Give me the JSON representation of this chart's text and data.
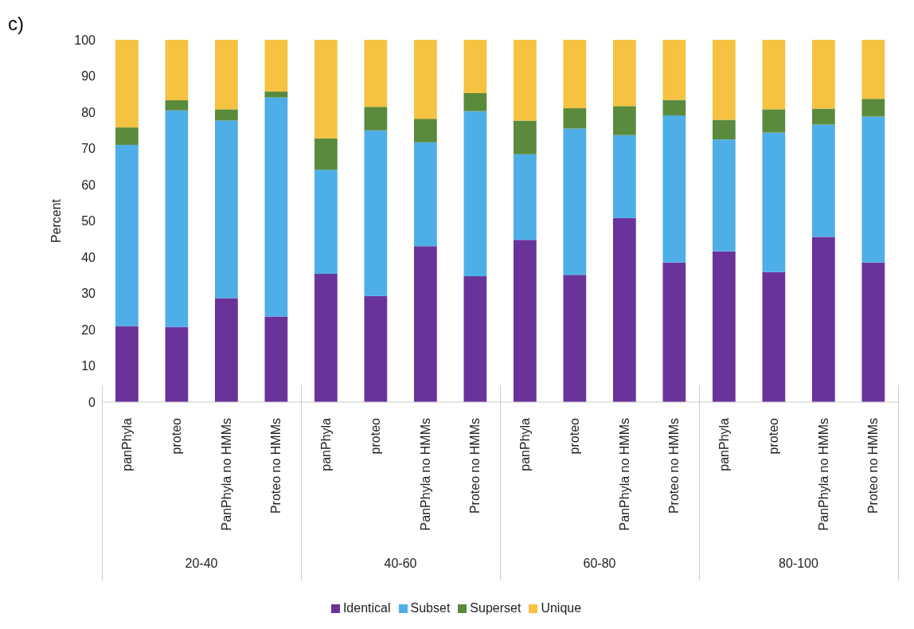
{
  "chart_data": {
    "type": "bar",
    "stacked": true,
    "ylabel": "Percent",
    "ylim": [
      0,
      100
    ],
    "yticks": [
      0,
      10,
      20,
      30,
      40,
      50,
      60,
      70,
      80,
      90,
      100
    ],
    "legend": "bottom",
    "annotations": [
      "c)",
      "20-40",
      "40-60",
      "60-80",
      "80-100"
    ],
    "categories": [
      "panPhyla",
      "proteo",
      "PanPhyla no HMMs",
      "Proteo no HMMs",
      "panPhyla",
      "proteo",
      "PanPhyla no HMMs",
      "Proteo no HMMs",
      "panPhyla",
      "proteo",
      "PanPhyla no HMMs",
      "Proteo no HMMs",
      "panPhyla",
      "proteo",
      "PanPhyla no HMMs",
      "Proteo no HMMs"
    ],
    "series": [
      {
        "name": "Identical",
        "color": "#6a3399",
        "values": [
          21,
          20.7,
          28.7,
          23.6,
          35.4,
          29.3,
          43,
          34.7,
          44.8,
          35.1,
          50.8,
          38.5,
          41.6,
          35.9,
          45.6,
          38.5
        ]
      },
      {
        "name": "Subset",
        "color": "#4eaee8",
        "values": [
          50,
          59.8,
          49,
          60.5,
          28.7,
          45.7,
          28.7,
          45.6,
          23.6,
          40.4,
          22.9,
          40.6,
          30.9,
          38.5,
          31,
          40.3
        ]
      },
      {
        "name": "Superset",
        "color": "#5a8a3c",
        "values": [
          4.8,
          2.8,
          3.1,
          1.6,
          8.7,
          6.5,
          6.5,
          5,
          9.3,
          5.6,
          8,
          4.3,
          5.4,
          6.4,
          4.4,
          4.9
        ]
      },
      {
        "name": "Unique",
        "color": "#f5c242",
        "values": [
          24.2,
          16.7,
          19.2,
          14.3,
          27.2,
          18.5,
          21.8,
          14.7,
          22.3,
          18.9,
          18.3,
          16.6,
          22.1,
          19.2,
          19,
          16.3
        ]
      }
    ]
  }
}
